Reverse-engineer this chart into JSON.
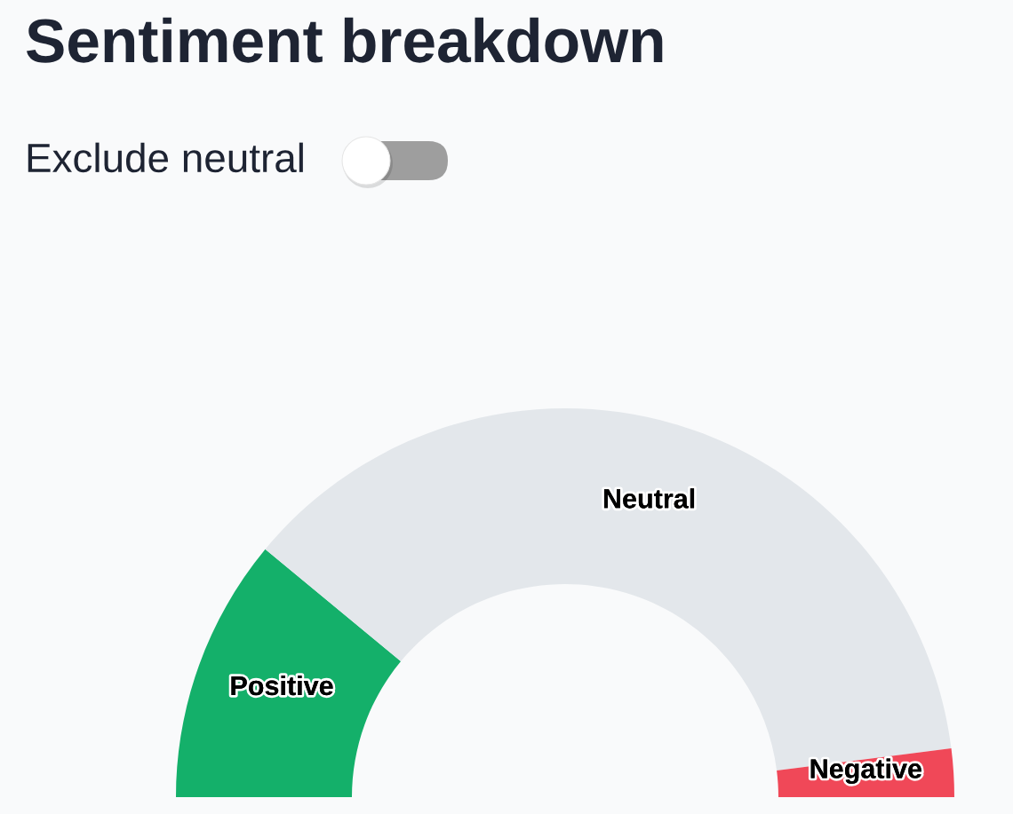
{
  "chart_data": {
    "type": "donut",
    "title": "Sentiment breakdown",
    "annotations": [
      "Exclude neutral"
    ],
    "categories": [
      "Positive",
      "Neutral",
      "Negative"
    ],
    "values": [
      22,
      74,
      4
    ],
    "colors": [
      "#14b06a",
      "#e3e7eb",
      "#f04858"
    ]
  }
}
